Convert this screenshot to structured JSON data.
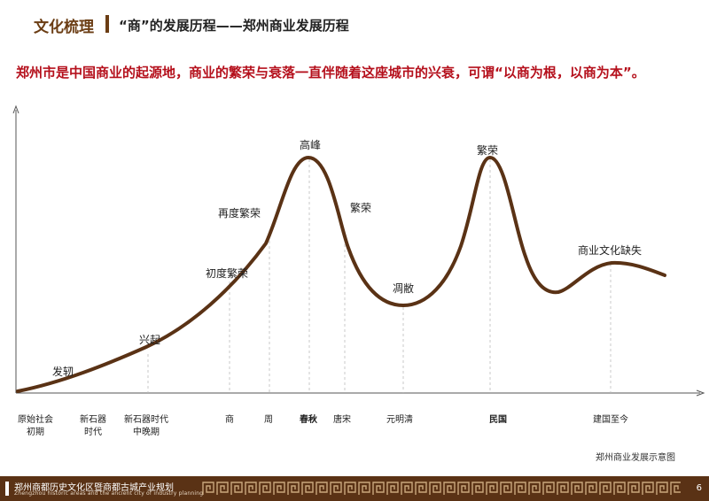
{
  "header": {
    "title": "文化梳理",
    "subtitle": "“商”的发展历程——郑州商业发展历程"
  },
  "headline": "郑州市是中国商业的起源地，商业的繁荣与衰落一直伴随着这座城市的兴衰，可谓“以商为根，以商为本”。",
  "stage_labels": [
    {
      "id": "faren",
      "text": "发轫"
    },
    {
      "id": "xingqi",
      "text": "兴起"
    },
    {
      "id": "chudu",
      "text": "初度繁荣"
    },
    {
      "id": "zaidu",
      "text": "再度繁荣"
    },
    {
      "id": "gaofeng",
      "text": "高峰"
    },
    {
      "id": "fanrong1",
      "text": "繁荣"
    },
    {
      "id": "diaobi",
      "text": "凋敝"
    },
    {
      "id": "fanrong2",
      "text": "繁荣"
    },
    {
      "id": "queshi",
      "text": "商业文化缺失"
    }
  ],
  "periods": [
    {
      "id": "yuanshi",
      "line1": "原始社会",
      "line2": "初期",
      "bold": false
    },
    {
      "id": "xinshiqi",
      "line1": "新石器",
      "line2": "时代",
      "bold": false
    },
    {
      "id": "xinshiqi-late",
      "line1": "新石器时代",
      "line2": "中晚期",
      "bold": false
    },
    {
      "id": "shang",
      "line1": "商",
      "line2": "",
      "bold": false
    },
    {
      "id": "zhou",
      "line1": "周",
      "line2": "",
      "bold": false
    },
    {
      "id": "chunqiu",
      "line1": "春秋",
      "line2": "",
      "bold": true
    },
    {
      "id": "tangsong",
      "line1": "唐宋",
      "line2": "",
      "bold": false
    },
    {
      "id": "yuanmingqing",
      "line1": "元明清",
      "line2": "",
      "bold": false
    },
    {
      "id": "minguo",
      "line1": "民国",
      "line2": "",
      "bold": true
    },
    {
      "id": "jianguo",
      "line1": "建国至今",
      "line2": "",
      "bold": false
    }
  ],
  "caption": "郑州商业发展示意图",
  "footer": {
    "title": "郑州商都历史文化区暨商都古城产业规划",
    "subtitle": "Zhengzhou historic areas and the ancient city of industry planning",
    "page": "6"
  },
  "colors": {
    "curve": "#5a3215",
    "headline": "#b5101c",
    "title": "#6b3d14",
    "footer": "#5a3215"
  }
}
